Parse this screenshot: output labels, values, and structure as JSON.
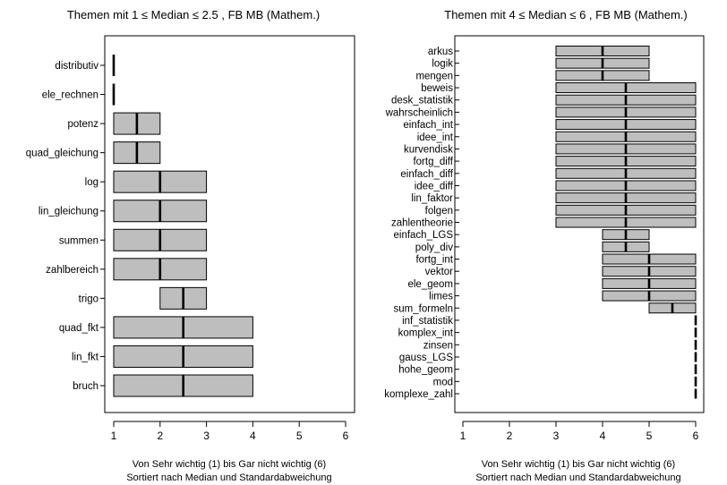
{
  "chart_data": [
    {
      "type": "boxplot",
      "orientation": "horizontal",
      "title": "Themen mit  1 ≤ Median ≤ 2.5 , FB MB  (Mathem.)",
      "xlabel": "Von Sehr wichtig (1) bis Gar nicht wichtig (6)",
      "subtitle": "Sortiert nach Median und Standardabweichung",
      "xlim": [
        1,
        6
      ],
      "xticks": [
        1,
        2,
        3,
        4,
        5,
        6
      ],
      "grid": false,
      "box_color": "#bebebe",
      "items": [
        {
          "label": "distributiv",
          "q1": 1,
          "median": 1,
          "q3": 1
        },
        {
          "label": "ele_rechnen",
          "q1": 1,
          "median": 1,
          "q3": 1
        },
        {
          "label": "potenz",
          "q1": 1,
          "median": 1.5,
          "q3": 2
        },
        {
          "label": "quad_gleichung",
          "q1": 1,
          "median": 1.5,
          "q3": 2
        },
        {
          "label": "log",
          "q1": 1,
          "median": 2,
          "q3": 3
        },
        {
          "label": "lin_gleichung",
          "q1": 1,
          "median": 2,
          "q3": 3
        },
        {
          "label": "summen",
          "q1": 1,
          "median": 2,
          "q3": 3
        },
        {
          "label": "zahlbereich",
          "q1": 1,
          "median": 2,
          "q3": 3
        },
        {
          "label": "trigo",
          "q1": 2,
          "median": 2.5,
          "q3": 3
        },
        {
          "label": "quad_fkt",
          "q1": 1,
          "median": 2.5,
          "q3": 4
        },
        {
          "label": "lin_fkt",
          "q1": 1,
          "median": 2.5,
          "q3": 4
        },
        {
          "label": "bruch",
          "q1": 1,
          "median": 2.5,
          "q3": 4
        }
      ]
    },
    {
      "type": "boxplot",
      "orientation": "horizontal",
      "title": "Themen mit  4 ≤ Median ≤ 6 , FB MB  (Mathem.)",
      "xlabel": "Von Sehr wichtig (1) bis Gar nicht wichtig (6)",
      "subtitle": "Sortiert nach Median und Standardabweichung",
      "xlim": [
        1,
        6
      ],
      "xticks": [
        1,
        2,
        3,
        4,
        5,
        6
      ],
      "grid": false,
      "box_color": "#bebebe",
      "items": [
        {
          "label": "arkus",
          "q1": 3,
          "median": 4,
          "q3": 5
        },
        {
          "label": "logik",
          "q1": 3,
          "median": 4,
          "q3": 5
        },
        {
          "label": "mengen",
          "q1": 3,
          "median": 4,
          "q3": 5
        },
        {
          "label": "beweis",
          "q1": 3,
          "median": 4.5,
          "q3": 6
        },
        {
          "label": "desk_statistik",
          "q1": 3,
          "median": 4.5,
          "q3": 6
        },
        {
          "label": "wahrscheinlich",
          "q1": 3,
          "median": 4.5,
          "q3": 6
        },
        {
          "label": "einfach_int",
          "q1": 3,
          "median": 4.5,
          "q3": 6
        },
        {
          "label": "idee_int",
          "q1": 3,
          "median": 4.5,
          "q3": 6
        },
        {
          "label": "kurvendisk",
          "q1": 3,
          "median": 4.5,
          "q3": 6
        },
        {
          "label": "fortg_diff",
          "q1": 3,
          "median": 4.5,
          "q3": 6
        },
        {
          "label": "einfach_diff",
          "q1": 3,
          "median": 4.5,
          "q3": 6
        },
        {
          "label": "idee_diff",
          "q1": 3,
          "median": 4.5,
          "q3": 6
        },
        {
          "label": "lin_faktor",
          "q1": 3,
          "median": 4.5,
          "q3": 6
        },
        {
          "label": "folgen",
          "q1": 3,
          "median": 4.5,
          "q3": 6
        },
        {
          "label": "zahlentheorie",
          "q1": 3,
          "median": 4.5,
          "q3": 6
        },
        {
          "label": "einfach_LGS",
          "q1": 4,
          "median": 4.5,
          "q3": 5
        },
        {
          "label": "poly_div",
          "q1": 4,
          "median": 4.5,
          "q3": 5
        },
        {
          "label": "fortg_int",
          "q1": 4,
          "median": 5,
          "q3": 6
        },
        {
          "label": "vektor",
          "q1": 4,
          "median": 5,
          "q3": 6
        },
        {
          "label": "ele_geom",
          "q1": 4,
          "median": 5,
          "q3": 6
        },
        {
          "label": "limes",
          "q1": 4,
          "median": 5,
          "q3": 6
        },
        {
          "label": "sum_formeln",
          "q1": 5,
          "median": 5.5,
          "q3": 6
        },
        {
          "label": "inf_statistik",
          "q1": 6,
          "median": 6,
          "q3": 6
        },
        {
          "label": "komplex_int",
          "q1": 6,
          "median": 6,
          "q3": 6
        },
        {
          "label": "zinsen",
          "q1": 6,
          "median": 6,
          "q3": 6
        },
        {
          "label": "gauss_LGS",
          "q1": 6,
          "median": 6,
          "q3": 6
        },
        {
          "label": "hohe_geom",
          "q1": 6,
          "median": 6,
          "q3": 6
        },
        {
          "label": "mod",
          "q1": 6,
          "median": 6,
          "q3": 6
        },
        {
          "label": "komplexe_zahl",
          "q1": 6,
          "median": 6,
          "q3": 6
        }
      ]
    }
  ]
}
